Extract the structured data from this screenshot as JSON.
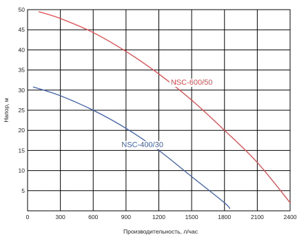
{
  "chart_data": {
    "type": "line",
    "xlabel": "Производительность, л/час",
    "ylabel": "Напор, м",
    "xlim": [
      0,
      2400
    ],
    "ylim": [
      0,
      50
    ],
    "x_ticks": [
      0,
      300,
      600,
      900,
      1200,
      1500,
      1800,
      2100,
      2400
    ],
    "y_ticks": [
      5,
      10,
      15,
      20,
      25,
      30,
      35,
      40,
      45,
      50
    ],
    "grid": true,
    "series": [
      {
        "name": "NSC-600/50",
        "color": "#e8474c",
        "x": [
          100,
          300,
          600,
          900,
          1200,
          1500,
          1800,
          2100,
          2400
        ],
        "y": [
          49.5,
          47.8,
          44.3,
          39.6,
          34.0,
          27.5,
          20.0,
          12.0,
          2.0
        ]
      },
      {
        "name": "NSC-400/30",
        "color": "#3e5fa8",
        "x": [
          50,
          300,
          600,
          900,
          1200,
          1500,
          1800,
          1850
        ],
        "y": [
          30.8,
          28.6,
          25.0,
          20.5,
          15.0,
          8.5,
          2.0,
          0.5
        ]
      }
    ]
  }
}
